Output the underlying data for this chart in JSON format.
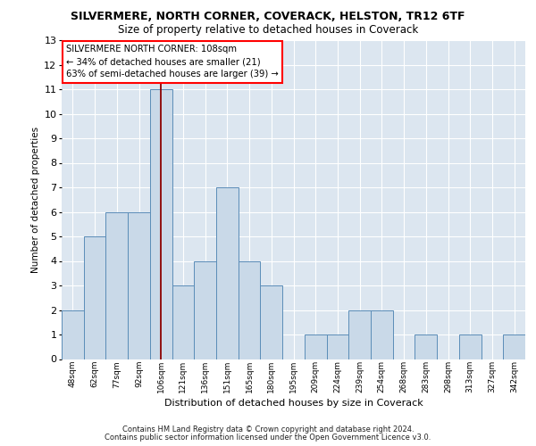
{
  "title1": "SILVERMERE, NORTH CORNER, COVERACK, HELSTON, TR12 6TF",
  "title2": "Size of property relative to detached houses in Coverack",
  "xlabel": "Distribution of detached houses by size in Coverack",
  "ylabel": "Number of detached properties",
  "categories": [
    "48sqm",
    "62sqm",
    "77sqm",
    "92sqm",
    "106sqm",
    "121sqm",
    "136sqm",
    "151sqm",
    "165sqm",
    "180sqm",
    "195sqm",
    "209sqm",
    "224sqm",
    "239sqm",
    "254sqm",
    "268sqm",
    "283sqm",
    "298sqm",
    "313sqm",
    "327sqm",
    "342sqm"
  ],
  "values": [
    2,
    5,
    6,
    6,
    11,
    3,
    4,
    7,
    4,
    3,
    0,
    1,
    1,
    2,
    2,
    0,
    1,
    0,
    1,
    0,
    1
  ],
  "bar_color": "#c9d9e8",
  "bar_edge_color": "#5b8db8",
  "ref_bar_index": 4,
  "annotation_line1": "SILVERMERE NORTH CORNER: 108sqm",
  "annotation_line2": "← 34% of detached houses are smaller (21)",
  "annotation_line3": "63% of semi-detached houses are larger (39) →",
  "ylim_max": 13,
  "bg_color": "#dce6f0",
  "grid_color": "#c8d8e8",
  "footer1": "Contains HM Land Registry data © Crown copyright and database right 2024.",
  "footer2": "Contains public sector information licensed under the Open Government Licence v3.0."
}
